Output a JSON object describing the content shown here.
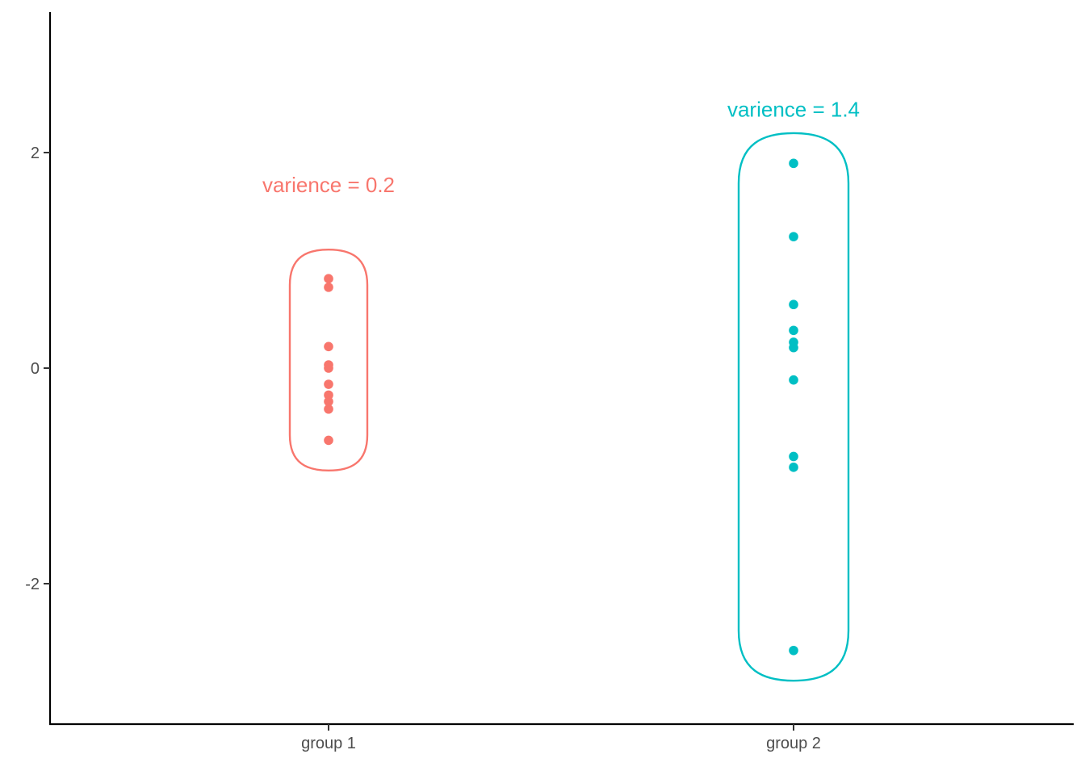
{
  "chart_data": {
    "type": "scatter",
    "categories": [
      "group 1",
      "group 2"
    ],
    "y_ticks": [
      -2,
      0,
      2
    ],
    "y_tick_labels": [
      "-2",
      "0",
      "2"
    ],
    "ylim": [
      -3.32,
      3.3
    ],
    "grid": false,
    "legend": "none",
    "xlabel": "",
    "ylabel": "",
    "title": "",
    "series": [
      {
        "category": "group 1",
        "color": "#F8766D",
        "values": [
          0.83,
          0.75,
          0.2,
          0.03,
          0.0,
          -0.15,
          -0.25,
          -0.31,
          -0.38,
          -0.67
        ],
        "annotation": "varience = 0.2",
        "annotation_y": 1.7,
        "hull": {
          "top": 1.1,
          "bottom": -0.95
        }
      },
      {
        "category": "group 2",
        "color": "#00BFC4",
        "values": [
          1.9,
          1.22,
          0.59,
          0.35,
          0.24,
          0.19,
          -0.11,
          -0.82,
          -0.92,
          -2.62
        ],
        "annotation": "varience = 1.4",
        "annotation_y": 2.4,
        "hull": {
          "top": 2.18,
          "bottom": -2.9
        }
      }
    ]
  }
}
